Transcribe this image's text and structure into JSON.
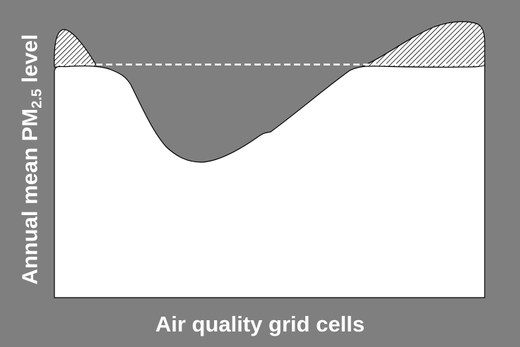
{
  "figure": {
    "y_axis_label": {
      "main": "Annual mean PM",
      "subscript": "2.5",
      "suffix": " level"
    },
    "x_axis_label": "Air quality grid cells",
    "colors": {
      "background": "#7f7f7f",
      "fill": "#ffffff",
      "outline": "#000000",
      "threshold_line": "#ffffff"
    },
    "elements": [
      "pollution-level-curve",
      "threshold-line",
      "hatched-exceedance-left",
      "hatched-exceedance-right"
    ]
  }
}
